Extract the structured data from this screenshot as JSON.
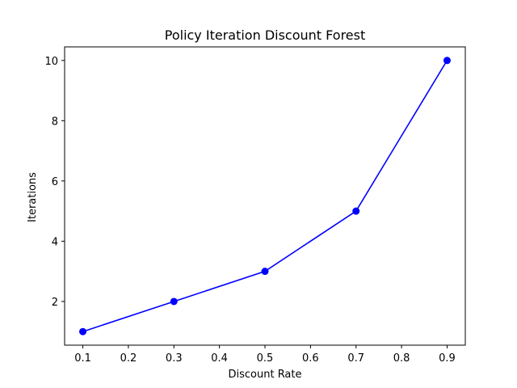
{
  "chart_data": {
    "type": "line",
    "title": "Policy Iteration Discount Forest",
    "xlabel": "Discount Rate",
    "ylabel": "Iterations",
    "x": [
      0.1,
      0.3,
      0.5,
      0.7,
      0.9
    ],
    "series": [
      {
        "values": [
          1,
          2,
          3,
          5,
          10
        ],
        "color": "#0000ff",
        "marker": "circle"
      }
    ],
    "xlim": [
      0.06,
      0.94
    ],
    "ylim": [
      0.55,
      10.45
    ],
    "xticks": [
      0.1,
      0.2,
      0.3,
      0.4,
      0.5,
      0.6,
      0.7,
      0.8,
      0.9
    ],
    "xtick_labels": [
      "0.1",
      "0.2",
      "0.3",
      "0.4",
      "0.5",
      "0.6",
      "0.7",
      "0.8",
      "0.9"
    ],
    "yticks": [
      2,
      4,
      6,
      8,
      10
    ],
    "ytick_labels": [
      "2",
      "4",
      "6",
      "8",
      "10"
    ],
    "grid": false,
    "legend": false
  }
}
